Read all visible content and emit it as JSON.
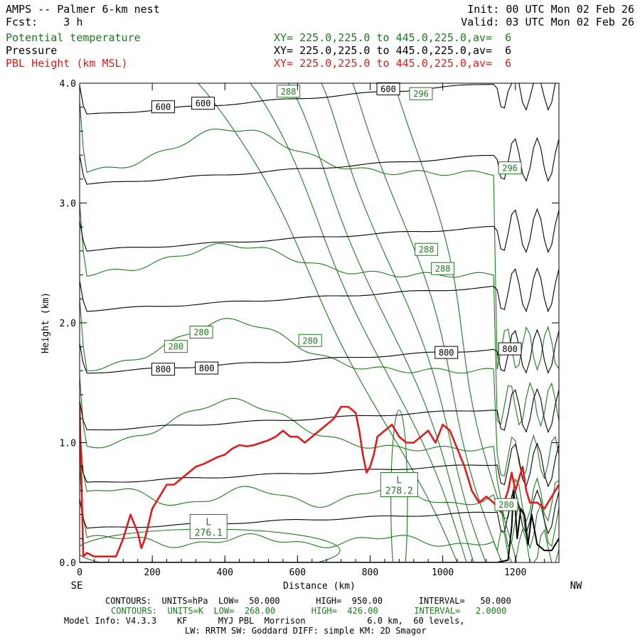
{
  "header": {
    "title_left": "AMPS -- Palmer 6-km nest",
    "fcst_label": "Fcst:",
    "fcst_value": "3 h",
    "init": "Init: 00 UTC Mon 02 Feb 26",
    "valid": "Valid: 03 UTC Mon 02 Feb 26"
  },
  "legend": {
    "theta": {
      "label": "Potential temperature",
      "xy": "XY= 225.0,225.0 to 445.0,225.0,av=  6",
      "color": "#1e7a1e"
    },
    "pressure": {
      "label": "Pressure",
      "xy": "XY= 225.0,225.0 to 445.0,225.0,av=  6",
      "color": "#000000"
    },
    "pbl": {
      "label": "PBL Height (km MSL)",
      "xy": "XY= 225.0,225.0 to 445.0,225.0,av=  6",
      "color": "#e31a1c"
    }
  },
  "footer": {
    "line1": "CONTOURS:  UNITS=hPa  LOW=  50.000       HIGH=  950.00       INTERVAL=   50.000",
    "line2": "CONTOURS:  UNITS=K  LOW=  268.00       HIGH=  426.00       INTERVAL=   2.0000",
    "line3": "Model Info: V4.3.3    KF      MYJ PBL  Morrison            6.0 km,  60 levels,",
    "line4": "LW: RRTM SW: Goddard DIFF: simple KM: 2D Smagor"
  },
  "chart_data": {
    "type": "line",
    "xlabel": "Distance (km)",
    "ylabel": "Height (km)",
    "xlim": [
      0,
      1320
    ],
    "ylim": [
      0,
      4
    ],
    "x_ticks": [
      0,
      200,
      400,
      600,
      800,
      1000,
      1200
    ],
    "x_tick_labels": [
      "0",
      "200",
      "400",
      "600",
      "800",
      "1000",
      "1200"
    ],
    "y_ticks": [
      0,
      1,
      2,
      3,
      4
    ],
    "y_tick_labels": [
      "0.0",
      "1.0",
      "2.0",
      "3.0",
      "4.0"
    ],
    "x_end_labels": {
      "left": "SE",
      "right": "NW"
    },
    "series": [
      {
        "name": "PBL Height (km MSL)",
        "color": "#e31a1c",
        "x": [
          0,
          10,
          20,
          40,
          60,
          80,
          100,
          120,
          140,
          160,
          170,
          180,
          200,
          220,
          240,
          260,
          280,
          300,
          320,
          340,
          360,
          380,
          400,
          420,
          440,
          460,
          480,
          500,
          520,
          540,
          560,
          580,
          600,
          620,
          640,
          660,
          680,
          700,
          720,
          740,
          760,
          770,
          780,
          790,
          800,
          810,
          820,
          840,
          860,
          880,
          900,
          920,
          940,
          960,
          980,
          1000,
          1020,
          1040,
          1060,
          1080,
          1100,
          1120,
          1140,
          1160,
          1180,
          1190,
          1200,
          1210,
          1220,
          1230,
          1240,
          1260,
          1280,
          1300,
          1320
        ],
        "y": [
          1.3,
          0.05,
          0.08,
          0.05,
          0.05,
          0.05,
          0.05,
          0.2,
          0.4,
          0.25,
          0.12,
          0.2,
          0.45,
          0.55,
          0.65,
          0.65,
          0.7,
          0.75,
          0.8,
          0.82,
          0.85,
          0.88,
          0.9,
          0.95,
          0.98,
          0.97,
          0.98,
          1.0,
          1.02,
          1.05,
          1.1,
          1.05,
          1.05,
          1.0,
          1.05,
          1.1,
          1.15,
          1.2,
          1.3,
          1.3,
          1.25,
          1.1,
          0.9,
          0.75,
          0.8,
          0.9,
          1.05,
          1.1,
          1.15,
          1.05,
          1.0,
          1.0,
          1.05,
          1.1,
          1.0,
          1.15,
          1.1,
          0.95,
          0.8,
          0.6,
          0.5,
          0.55,
          0.5,
          0.42,
          0.6,
          0.75,
          0.6,
          0.7,
          0.8,
          0.6,
          0.5,
          0.5,
          0.45,
          0.55,
          0.65
        ]
      },
      {
        "name": "Terrain",
        "color": "#000000",
        "x": [
          0,
          100,
          1000,
          1150,
          1180,
          1190,
          1195,
          1200,
          1205,
          1215,
          1225,
          1235,
          1245,
          1260,
          1280,
          1300,
          1320
        ],
        "y": [
          0,
          0,
          0,
          0,
          0.02,
          0.3,
          0.6,
          0.45,
          0.2,
          0.45,
          0.4,
          0.15,
          0.4,
          0.15,
          0.1,
          0.1,
          0.2
        ]
      }
    ],
    "pressure_contours": [
      {
        "y_left": 0.28,
        "y_right": 0.42
      },
      {
        "y_left": 0.66,
        "y_right": 0.82
      },
      {
        "y_left": 1.1,
        "y_right": 1.28
      },
      {
        "y_left": 1.58,
        "y_right": 1.78
      },
      {
        "y_left": 2.1,
        "y_right": 2.3
      },
      {
        "y_left": 2.6,
        "y_right": 2.8
      },
      {
        "y_left": 3.15,
        "y_right": 3.4
      },
      {
        "y_left": 3.73,
        "y_right": 4.0
      }
    ],
    "theta_contours": [
      {
        "kind": "flat",
        "y": 0.18,
        "peak": 0.22
      },
      {
        "kind": "flat",
        "y": 0.55,
        "peak": 0.62
      },
      {
        "kind": "dome",
        "y": 0.95,
        "peak": 1.35
      },
      {
        "kind": "dome",
        "y": 1.6,
        "peak": 2.02
      },
      {
        "kind": "dome",
        "y": 2.4,
        "peak": 2.65
      },
      {
        "kind": "dome",
        "y": 3.25,
        "peak": 3.62
      },
      {
        "kind": "slant",
        "x_top": 330,
        "x_bot": 1030
      },
      {
        "kind": "slant",
        "x_top": 460,
        "x_bot": 1070
      },
      {
        "kind": "slant",
        "x_top": 560,
        "x_bot": 1100
      },
      {
        "kind": "slant",
        "x_top": 660,
        "x_bot": 1130
      },
      {
        "kind": "slant",
        "x_top": 760,
        "x_bot": 1160
      },
      {
        "kind": "slant",
        "x_top": 880,
        "x_bot": 1190
      }
    ],
    "contour_labels": [
      {
        "text": "600",
        "x": 230,
        "y": 3.8,
        "color": "#000000"
      },
      {
        "text": "600",
        "x": 340,
        "y": 3.83,
        "color": "#000000"
      },
      {
        "text": "600",
        "x": 850,
        "y": 3.95,
        "color": "#000000"
      },
      {
        "text": "800",
        "x": 230,
        "y": 1.61,
        "color": "#000000"
      },
      {
        "text": "800",
        "x": 350,
        "y": 1.62,
        "color": "#000000"
      },
      {
        "text": "800",
        "x": 1010,
        "y": 1.75,
        "color": "#000000"
      },
      {
        "text": "800",
        "x": 1185,
        "y": 1.78,
        "color": "#000000"
      },
      {
        "text": "288",
        "x": 575,
        "y": 3.93,
        "color": "#1e7a1e"
      },
      {
        "text": "296",
        "x": 940,
        "y": 3.91,
        "color": "#1e7a1e"
      },
      {
        "text": "296",
        "x": 1185,
        "y": 3.29,
        "color": "#1e7a1e"
      },
      {
        "text": "288",
        "x": 955,
        "y": 2.61,
        "color": "#1e7a1e"
      },
      {
        "text": "288",
        "x": 1000,
        "y": 2.45,
        "color": "#1e7a1e"
      },
      {
        "text": "280",
        "x": 335,
        "y": 1.92,
        "color": "#1e7a1e"
      },
      {
        "text": "280",
        "x": 265,
        "y": 1.8,
        "color": "#1e7a1e"
      },
      {
        "text": "280",
        "x": 635,
        "y": 1.85,
        "color": "#1e7a1e"
      },
      {
        "text": "280",
        "x": 1175,
        "y": 0.48,
        "color": "#1e7a1e"
      }
    ],
    "low_labels": [
      {
        "letter": "L",
        "value": "276.1",
        "x": 355,
        "y": 0.3
      },
      {
        "letter": "L",
        "value": "278.2",
        "x": 880,
        "y": 0.65
      }
    ]
  }
}
